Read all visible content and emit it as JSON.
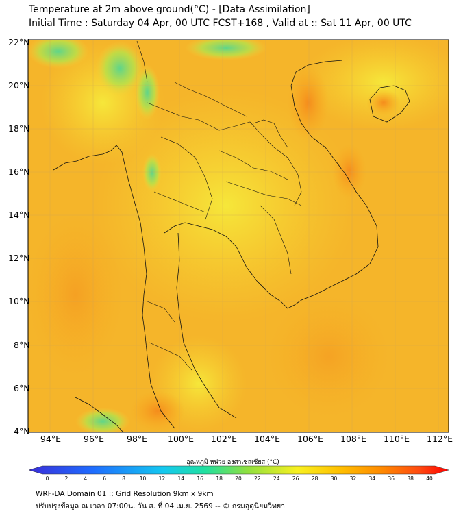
{
  "title_line1": "Temperature at 2m above ground(°C) - [Data Assimilation]",
  "title_line2": "Initial Time : Saturday 04 Apr, 00 UTC FCST+168 , Valid at :: Sat 11 Apr, 00 UTC",
  "lat_labels": [
    "22°N",
    "20°N",
    "18°N",
    "16°N",
    "14°N",
    "12°N",
    "10°N",
    "8°N",
    "6°N",
    "4°N"
  ],
  "lon_labels": [
    "94°E",
    "96°E",
    "98°E",
    "100°E",
    "102°E",
    "104°E",
    "106°E",
    "108°E",
    "110°E",
    "112°E"
  ],
  "colorbar": {
    "title": "อุณหภูมิ หน่วย องศาเซลเซียส (°C)",
    "ticks": [
      "0",
      "2",
      "4",
      "6",
      "8",
      "10",
      "12",
      "14",
      "16",
      "18",
      "20",
      "22",
      "24",
      "26",
      "28",
      "30",
      "32",
      "34",
      "36",
      "38",
      "40"
    ],
    "colors": [
      "#3a2fd8",
      "#1f6bff",
      "#14c8f0",
      "#20e0a0",
      "#8fe040",
      "#f8f020",
      "#ffc000",
      "#ff8a00",
      "#ff4a10",
      "#ff0000"
    ]
  },
  "footer_line1": "WRF-DA Domain 01 :: Grid Resolution 9km x 9km",
  "footer_line2": "ปรับปรุงข้อมูล ณ เวลา 07:00น. วัน ส. ที่ 04 เม.ย. 2569 -- © กรมอุตุนิยมวิทยา"
}
